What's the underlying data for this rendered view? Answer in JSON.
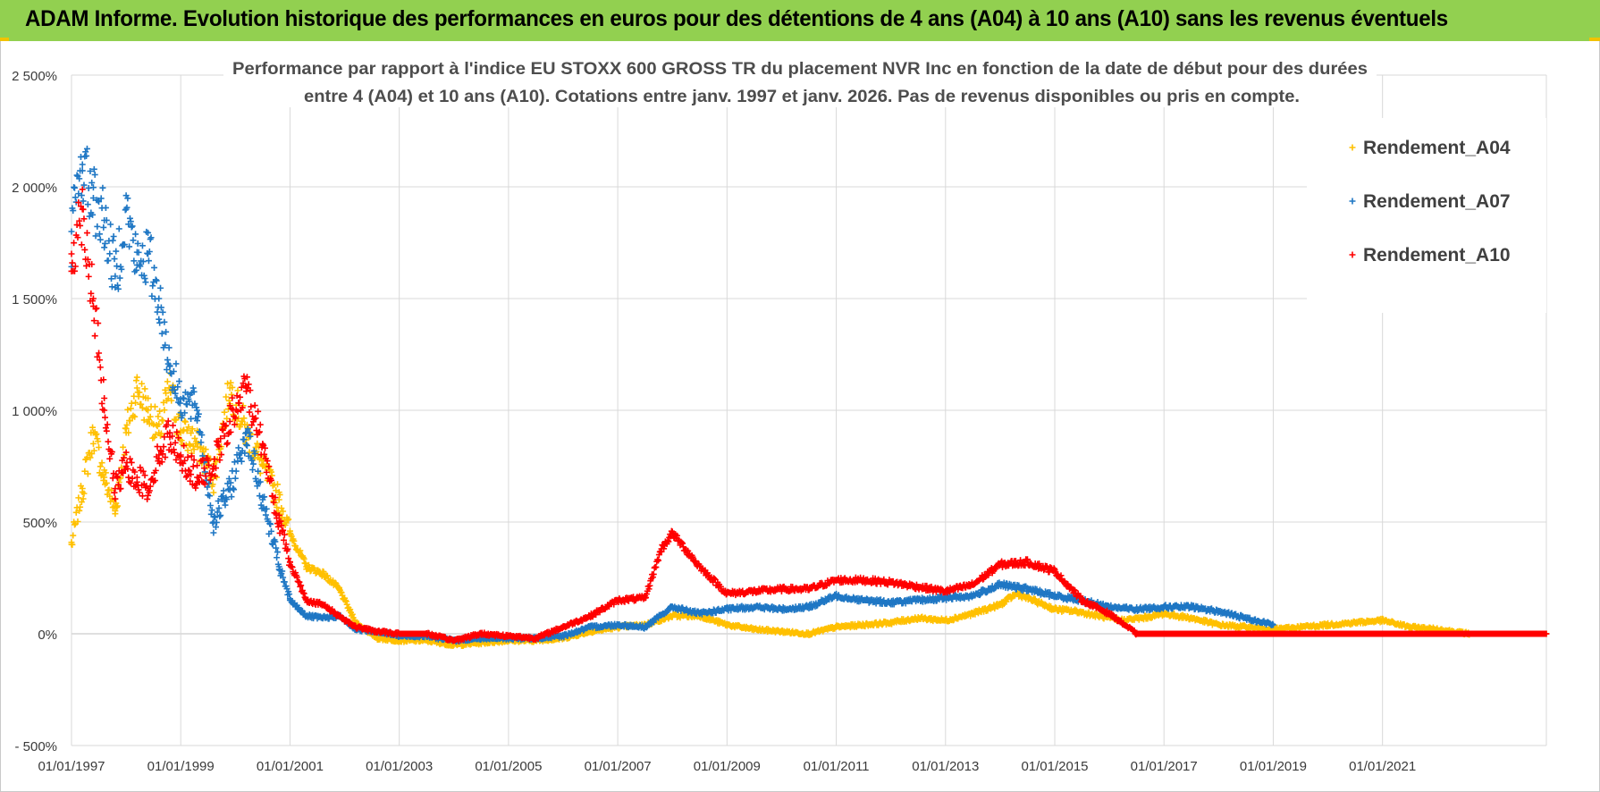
{
  "header": {
    "title": "ADAM Informe. Evolution historique des performances en euros pour des détentions de 4 ans (A04) à 10 ans (A10) sans les revenus éventuels"
  },
  "colors": {
    "banner": "#92d050",
    "A04": "#ffc000",
    "A07": "#1f77c4",
    "A10": "#ff0000",
    "grid": "#d9d9d9"
  },
  "chart_data": {
    "type": "scatter",
    "subtitle": [
      "Performance par rapport à l'indice EU STOXX 600 GROSS TR  du placement NVR Inc en fonction de la date de début pour des durées",
      "entre 4 (A04) et 10 ans (A10).  Cotations entre janv. 1997 et janv. 2026. Pas de revenus disponibles ou pris en compte."
    ],
    "xlabel": "",
    "ylabel": "",
    "xlim": [
      1997.0,
      2024.0
    ],
    "ylim": [
      -500,
      2500
    ],
    "yticks": [
      -500,
      0,
      500,
      1000,
      1500,
      2000,
      2500
    ],
    "ytick_labels": [
      "- 500%",
      "0%",
      "500%",
      "1 000%",
      "1 500%",
      "2 000%",
      "2 500%"
    ],
    "xticks": [
      1997,
      1999,
      2001,
      2003,
      2005,
      2007,
      2009,
      2011,
      2013,
      2015,
      2017,
      2019,
      2021
    ],
    "xtick_labels": [
      "01/01/1997",
      "01/01/1999",
      "01/01/2001",
      "01/01/2003",
      "01/01/2005",
      "01/01/2007",
      "01/01/2009",
      "01/01/2011",
      "01/01/2013",
      "01/01/2015",
      "01/01/2017",
      "01/01/2019",
      "01/01/2021"
    ],
    "grid": true,
    "legend_position": "top-right",
    "marker": "+",
    "series": [
      {
        "name": "Rendement_A04",
        "color": "#ffc000",
        "x": [
          1997.0,
          1997.2,
          1997.4,
          1997.6,
          1997.8,
          1998.0,
          1998.2,
          1998.4,
          1998.6,
          1998.8,
          1999.0,
          1999.3,
          1999.6,
          1999.9,
          2000.2,
          2000.5,
          2000.8,
          2001.0,
          2001.3,
          2001.6,
          2001.9,
          2002.2,
          2002.6,
          2003.0,
          2003.5,
          2004.0,
          2004.5,
          2005.0,
          2005.5,
          2006.0,
          2006.5,
          2007.0,
          2007.5,
          2008.0,
          2008.5,
          2009.0,
          2009.5,
          2010.0,
          2010.5,
          2011.0,
          2011.5,
          2012.0,
          2012.5,
          2013.0,
          2013.5,
          2014.0,
          2014.3,
          2014.6,
          2015.0,
          2015.4,
          2015.8,
          2016.2,
          2016.6,
          2017.0,
          2017.5,
          2018.0,
          2018.5,
          2019.0,
          2019.5,
          2020.0,
          2020.5,
          2021.0,
          2021.5,
          2022.0,
          2022.3,
          2022.6,
          2023.0,
          2023.5,
          2024.0
        ],
        "values": [
          400,
          650,
          900,
          700,
          550,
          900,
          1100,
          1000,
          900,
          1100,
          900,
          850,
          700,
          1100,
          900,
          750,
          600,
          450,
          300,
          270,
          200,
          50,
          -20,
          -30,
          -30,
          -50,
          -40,
          -30,
          -30,
          -20,
          10,
          30,
          40,
          80,
          80,
          40,
          20,
          10,
          0,
          30,
          40,
          50,
          70,
          60,
          90,
          130,
          180,
          150,
          110,
          100,
          80,
          60,
          70,
          90,
          70,
          40,
          30,
          20,
          30,
          40,
          50,
          60,
          30,
          20,
          10,
          0,
          0,
          0,
          0
        ]
      },
      {
        "name": "Rendement_A07",
        "color": "#1f77c4",
        "x": [
          1997.0,
          1997.2,
          1997.4,
          1997.6,
          1997.8,
          1998.0,
          1998.2,
          1998.4,
          1998.6,
          1998.8,
          1999.0,
          1999.3,
          1999.6,
          1999.9,
          2000.2,
          2000.5,
          2000.8,
          2001.0,
          2001.3,
          2001.6,
          2001.9,
          2002.2,
          2002.6,
          2003.0,
          2003.5,
          2004.0,
          2004.5,
          2005.0,
          2005.5,
          2006.0,
          2006.5,
          2007.0,
          2007.5,
          2008.0,
          2008.5,
          2009.0,
          2009.5,
          2010.0,
          2010.5,
          2011.0,
          2011.5,
          2012.0,
          2012.5,
          2013.0,
          2013.5,
          2014.0,
          2014.5,
          2015.0,
          2015.5,
          2016.0,
          2016.5,
          2017.0,
          2017.5,
          2018.0,
          2018.5,
          2019.0
        ],
        "values": [
          1800,
          2100,
          1950,
          1850,
          1600,
          1900,
          1650,
          1700,
          1500,
          1200,
          1050,
          1000,
          500,
          650,
          900,
          600,
          300,
          150,
          80,
          70,
          80,
          20,
          10,
          -10,
          -10,
          -30,
          -20,
          -20,
          -20,
          -10,
          30,
          40,
          30,
          120,
          90,
          110,
          120,
          110,
          120,
          170,
          150,
          140,
          150,
          160,
          170,
          220,
          200,
          170,
          150,
          120,
          110,
          120,
          120,
          100,
          70,
          40
        ]
      },
      {
        "name": "Rendement_A10",
        "color": "#ff0000",
        "x": [
          1997.0,
          1997.2,
          1997.4,
          1997.6,
          1997.8,
          1998.0,
          1998.2,
          1998.4,
          1998.6,
          1998.8,
          1999.0,
          1999.3,
          1999.6,
          1999.9,
          2000.2,
          2000.5,
          2000.8,
          2001.0,
          2001.3,
          2001.6,
          2001.9,
          2002.2,
          2002.6,
          2003.0,
          2003.5,
          2004.0,
          2004.5,
          2005.0,
          2005.5,
          2006.0,
          2006.5,
          2007.0,
          2007.5,
          2007.8,
          2008.0,
          2008.5,
          2009.0,
          2009.5,
          2010.0,
          2010.5,
          2011.0,
          2011.5,
          2012.0,
          2012.5,
          2013.0,
          2013.5,
          2014.0,
          2014.5,
          2015.0,
          2015.5,
          2016.0,
          2016.5,
          2017.0,
          2017.5,
          2018.0,
          2018.5,
          2019.0,
          2019.5,
          2020.0,
          2020.5,
          2021.0,
          2021.5,
          2022.0,
          2022.5,
          2023.0,
          2023.5,
          2024.0
        ],
        "values": [
          1700,
          1900,
          1500,
          1000,
          650,
          750,
          700,
          650,
          800,
          900,
          800,
          700,
          750,
          950,
          1100,
          850,
          500,
          320,
          150,
          130,
          80,
          30,
          10,
          0,
          0,
          -30,
          0,
          -10,
          -20,
          30,
          80,
          150,
          160,
          380,
          450,
          300,
          180,
          190,
          200,
          200,
          240,
          240,
          230,
          210,
          190,
          220,
          310,
          320,
          280,
          150,
          90,
          0,
          0,
          0,
          0,
          0,
          0,
          0,
          0,
          0,
          0,
          0,
          0,
          0,
          0,
          0,
          0
        ]
      }
    ]
  }
}
